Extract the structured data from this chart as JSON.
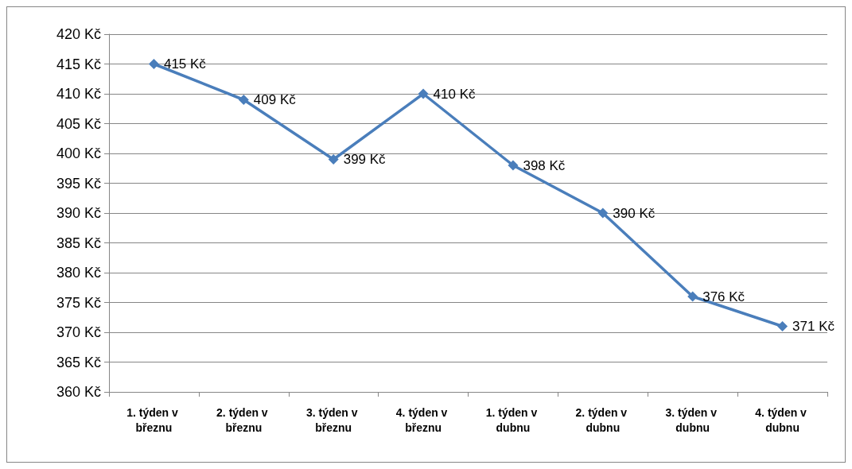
{
  "chart_data": {
    "type": "line",
    "categories": [
      "1. týden v březnu",
      "2. týden v březnu",
      "3. týden v březnu",
      "4. týden v březnu",
      "1. týden v dubnu",
      "2. týden v dubnu",
      "3. týden v dubnu",
      "4. týden v dubnu"
    ],
    "series": [
      {
        "color": "#4a7ebb",
        "values": [
          415,
          409,
          399,
          410,
          398,
          390,
          376,
          371
        ],
        "value_labels": [
          "415 Kč",
          "409 Kč",
          "399 Kč",
          "410 Kč",
          "398 Kč",
          "390 Kč",
          "376 Kč",
          "371 Kč"
        ]
      }
    ],
    "ylim": [
      360,
      420
    ],
    "yticks": [
      {
        "value": 360,
        "label": "360 Kč"
      },
      {
        "value": 365,
        "label": "365 Kč"
      },
      {
        "value": 370,
        "label": "370 Kč"
      },
      {
        "value": 375,
        "label": "375 Kč"
      },
      {
        "value": 380,
        "label": "380 Kč"
      },
      {
        "value": 385,
        "label": "385 Kč"
      },
      {
        "value": 390,
        "label": "390 Kč"
      },
      {
        "value": 395,
        "label": "395 Kč"
      },
      {
        "value": 400,
        "label": "400 Kč"
      },
      {
        "value": 405,
        "label": "405 Kč"
      },
      {
        "value": 410,
        "label": "410 Kč"
      },
      {
        "value": 415,
        "label": "415 Kč"
      },
      {
        "value": 420,
        "label": "420 Kč"
      }
    ],
    "grid": "y",
    "marker": "diamond",
    "line_style": "solid"
  }
}
